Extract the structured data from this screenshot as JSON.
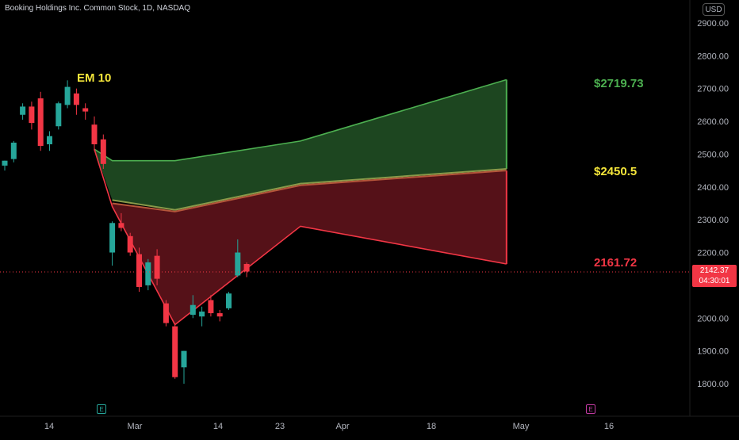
{
  "header": {
    "ticker": "Booking Holdings Inc. Common Stock, 1D, NASDAQ",
    "currency": "USD"
  },
  "y_axis": {
    "labels": [
      "2900.00",
      "2800.00",
      "2700.00",
      "2600.00",
      "2500.00",
      "2400.00",
      "2300.00",
      "2200.00",
      "2000.00",
      "1900.00",
      "1800.00"
    ]
  },
  "x_axis": {
    "labels": [
      "14",
      "Mar",
      "14",
      "23",
      "Apr",
      "18",
      "May",
      "16"
    ]
  },
  "price_tag": {
    "price": "2142.37",
    "countdown": "04:30:01"
  },
  "annotations": {
    "em_label": "EM 10",
    "upper_level": "$2719.73",
    "mid_level": "$2450.5",
    "lower_level": "2161.72"
  },
  "markers": {
    "earnings_past": "E",
    "earnings_future": "E"
  },
  "colors": {
    "background": "#000000",
    "up_candle": "#26a69a",
    "down_candle": "#f23645",
    "upper_band_fill": "#1f4a22",
    "lower_band_fill": "#5a1219",
    "upper_line": "#4caf50",
    "lower_line": "#f23645",
    "mid_level_text": "#f5e63a",
    "em_label": "#f5e63a"
  },
  "chart_data": {
    "type": "candlestick",
    "ylim": [
      1760,
      2930
    ],
    "candles": [
      {
        "o": 2465,
        "h": 2480,
        "l": 2450,
        "c": 2480
      },
      {
        "o": 2485,
        "h": 2540,
        "l": 2475,
        "c": 2535
      },
      {
        "o": 2620,
        "h": 2655,
        "l": 2605,
        "c": 2645
      },
      {
        "o": 2645,
        "h": 2660,
        "l": 2575,
        "c": 2595
      },
      {
        "o": 2670,
        "h": 2690,
        "l": 2510,
        "c": 2525
      },
      {
        "o": 2530,
        "h": 2570,
        "l": 2510,
        "c": 2555
      },
      {
        "o": 2585,
        "h": 2660,
        "l": 2575,
        "c": 2655
      },
      {
        "o": 2650,
        "h": 2725,
        "l": 2640,
        "c": 2705
      },
      {
        "o": 2685,
        "h": 2700,
        "l": 2620,
        "c": 2650
      },
      {
        "o": 2640,
        "h": 2655,
        "l": 2605,
        "c": 2630
      },
      {
        "o": 2590,
        "h": 2615,
        "l": 2510,
        "c": 2530
      },
      {
        "o": 2545,
        "h": 2560,
        "l": 2455,
        "c": 2470
      },
      {
        "o": 2200,
        "h": 2295,
        "l": 2160,
        "c": 2290
      },
      {
        "o": 2290,
        "h": 2320,
        "l": 2265,
        "c": 2275
      },
      {
        "o": 2250,
        "h": 2260,
        "l": 2190,
        "c": 2200
      },
      {
        "o": 2195,
        "h": 2215,
        "l": 2080,
        "c": 2095
      },
      {
        "o": 2100,
        "h": 2180,
        "l": 2085,
        "c": 2170
      },
      {
        "o": 2190,
        "h": 2210,
        "l": 2100,
        "c": 2120
      },
      {
        "o": 2045,
        "h": 2055,
        "l": 1975,
        "c": 1985
      },
      {
        "o": 1975,
        "h": 1985,
        "l": 1815,
        "c": 1820
      },
      {
        "o": 1850,
        "h": 1900,
        "l": 1800,
        "c": 1900
      },
      {
        "o": 2010,
        "h": 2070,
        "l": 2000,
        "c": 2040
      },
      {
        "o": 2005,
        "h": 2035,
        "l": 1975,
        "c": 2020
      },
      {
        "o": 2055,
        "h": 2070,
        "l": 2005,
        "c": 2015
      },
      {
        "o": 2015,
        "h": 2025,
        "l": 1990,
        "c": 2005
      },
      {
        "o": 2030,
        "h": 2080,
        "l": 2025,
        "c": 2075
      },
      {
        "o": 2130,
        "h": 2240,
        "l": 2125,
        "c": 2200
      },
      {
        "o": 2165,
        "h": 2170,
        "l": 2125,
        "c": 2142
      }
    ],
    "bands": {
      "upper_line": [
        [
          "day10",
          2515
        ],
        [
          "day12",
          2480
        ],
        [
          "day19",
          2480
        ],
        [
          "day33",
          2540
        ],
        [
          "day56",
          2727
        ]
      ],
      "mid_upper": [
        [
          "day12",
          2360
        ],
        [
          "day19",
          2330
        ],
        [
          "day33",
          2410
        ],
        [
          "day56",
          2455
        ]
      ],
      "mid_lower": [
        [
          "day12",
          2350
        ],
        [
          "day19",
          2325
        ],
        [
          "day33",
          2405
        ],
        [
          "day56",
          2450
        ]
      ],
      "lower_line": [
        [
          "day10",
          2515
        ],
        [
          "day12",
          2340
        ],
        [
          "day19",
          1980
        ],
        [
          "day33",
          2280
        ],
        [
          "day56",
          2165
        ]
      ]
    },
    "current_price": 2142.37
  }
}
